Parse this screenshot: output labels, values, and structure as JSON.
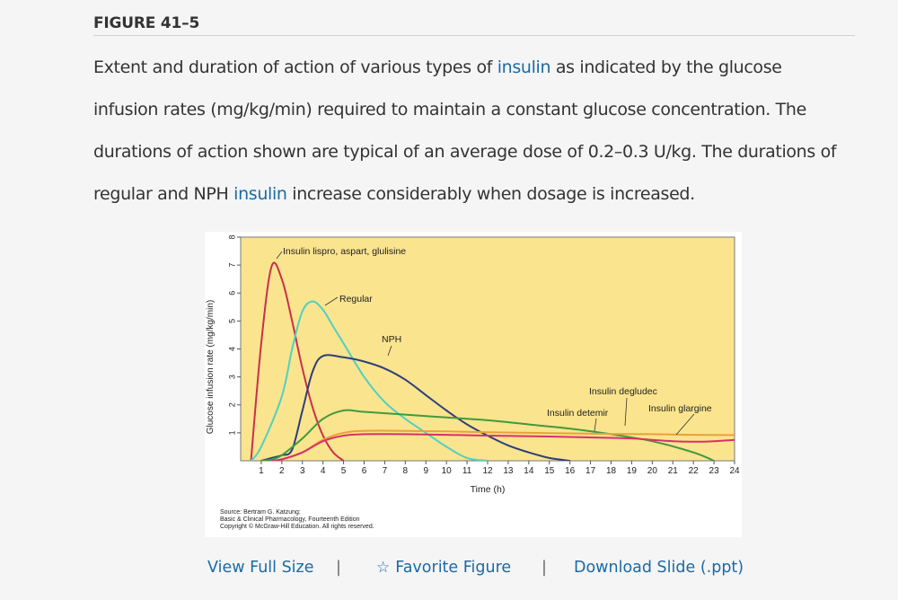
{
  "figure_label": "FIGURE 41–5",
  "caption": {
    "part1": "Extent and duration of action of various types of ",
    "link1": "insulin",
    "part2": " as indicated by the glucose infusion rates (mg/kg/min) required to maintain a constant glucose concentration. The durations of action shown are typical of an average dose of 0.2–0.3 U/kg. The durations of regular and NPH ",
    "link2": "insulin",
    "part3": " increase considerably when dosage is increased."
  },
  "source": {
    "line1": "Source: Bertram G. Katzung:",
    "line2": "Basic & Clinical Pharmacology, Fourteenth Edition",
    "line3": "Copyright © McGraw-Hill Education. All rights reserved."
  },
  "actions": {
    "view_full_size": "View Full Size",
    "favorite_figure": "Favorite Figure",
    "download_slide": "Download Slide (.ppt)",
    "separator": "|"
  },
  "colors": {
    "plot_bg": "#fbe48e",
    "link": "#1a6aa5",
    "lispro": "#c8304a",
    "regular": "#4fd1c2",
    "nph": "#2d3f7a",
    "detemir": "#3f9a3d",
    "degludec": "#e8a23a",
    "glargine": "#d7306c"
  },
  "chart_data": {
    "type": "line",
    "xlabel": "Time (h)",
    "ylabel": "Glucose infusion rate (mg/kg/min)",
    "xlim": [
      0,
      24
    ],
    "ylim": [
      0,
      8
    ],
    "xticks": [
      "1",
      "2",
      "3",
      "4",
      "5",
      "6",
      "7",
      "8",
      "9",
      "10",
      "11",
      "12",
      "13",
      "14",
      "15",
      "16",
      "17",
      "18",
      "19",
      "20",
      "21",
      "22",
      "23",
      "24"
    ],
    "yticks": [
      "1",
      "2",
      "3",
      "4",
      "5",
      "6",
      "7",
      "8"
    ],
    "series": [
      {
        "name": "Insulin lispro, aspart, glulisine",
        "color_key": "lispro",
        "x": [
          0.5,
          1.0,
          1.5,
          2.0,
          2.5,
          3.0,
          3.5,
          4.0,
          4.5,
          5.0
        ],
        "y": [
          0,
          4.2,
          6.95,
          6.5,
          5.0,
          3.3,
          1.9,
          0.9,
          0.3,
          0
        ]
      },
      {
        "name": "Regular",
        "color_key": "regular",
        "x": [
          0.5,
          1.0,
          2.0,
          2.5,
          3.0,
          3.5,
          4.0,
          4.5,
          5.0,
          6.0,
          7.0,
          8.0,
          9.0,
          10.0,
          11.0,
          12.0
        ],
        "y": [
          0,
          0.5,
          2.3,
          4.0,
          5.35,
          5.7,
          5.4,
          4.8,
          4.2,
          3.0,
          2.1,
          1.5,
          1.0,
          0.5,
          0.1,
          0
        ]
      },
      {
        "name": "NPH",
        "color_key": "nph",
        "x": [
          1.0,
          1.5,
          2.0,
          2.5,
          3.0,
          3.5,
          4.0,
          5.0,
          6.0,
          7.0,
          8.0,
          9.0,
          10.0,
          11.0,
          12.0,
          13.0,
          14.0,
          15.0,
          16.0
        ],
        "y": [
          0,
          0.1,
          0.2,
          0.4,
          1.8,
          3.2,
          3.75,
          3.7,
          3.55,
          3.3,
          2.9,
          2.35,
          1.8,
          1.3,
          0.9,
          0.55,
          0.3,
          0.1,
          0
        ]
      },
      {
        "name": "Insulin detemir",
        "color_key": "detemir",
        "x": [
          1.0,
          1.5,
          2.0,
          3.0,
          4.0,
          5.0,
          6.0,
          8.0,
          10.0,
          12.0,
          14.0,
          16.0,
          18.0,
          20.0,
          22.0,
          23.0
        ],
        "y": [
          0,
          0.05,
          0.2,
          0.8,
          1.5,
          1.8,
          1.75,
          1.65,
          1.55,
          1.45,
          1.3,
          1.15,
          0.95,
          0.7,
          0.3,
          0
        ]
      },
      {
        "name": "Insulin degludec",
        "color_key": "degludec",
        "x": [
          1.5,
          2.0,
          3.0,
          4.0,
          5.0,
          6.0,
          8.0,
          10.0,
          12.0,
          14.0,
          16.0,
          18.0,
          20.0,
          22.0,
          24.0
        ],
        "y": [
          0,
          0.05,
          0.3,
          0.75,
          1.0,
          1.07,
          1.07,
          1.05,
          1.02,
          1.0,
          0.98,
          0.96,
          0.95,
          0.93,
          0.92
        ]
      },
      {
        "name": "Insulin glargine",
        "color_key": "glargine",
        "x": [
          1.5,
          2.0,
          3.0,
          4.0,
          5.0,
          6.0,
          8.0,
          10.0,
          12.0,
          14.0,
          16.0,
          18.0,
          19.0,
          20.0,
          21.0,
          22.0,
          23.0,
          24.0
        ],
        "y": [
          0,
          0.05,
          0.3,
          0.7,
          0.9,
          0.95,
          0.95,
          0.93,
          0.9,
          0.88,
          0.85,
          0.82,
          0.8,
          0.75,
          0.7,
          0.68,
          0.7,
          0.75
        ]
      }
    ],
    "annotations": [
      {
        "text": "Insulin lispro, aspart, glulisine",
        "series": "lispro"
      },
      {
        "text": "Regular",
        "series": "regular"
      },
      {
        "text": "NPH",
        "series": "nph"
      },
      {
        "text": "Insulin degludec",
        "series": "degludec"
      },
      {
        "text": "Insulin detemir",
        "series": "detemir"
      },
      {
        "text": "Insulin glargine",
        "series": "glargine"
      }
    ],
    "grid": false,
    "legend": "none"
  }
}
